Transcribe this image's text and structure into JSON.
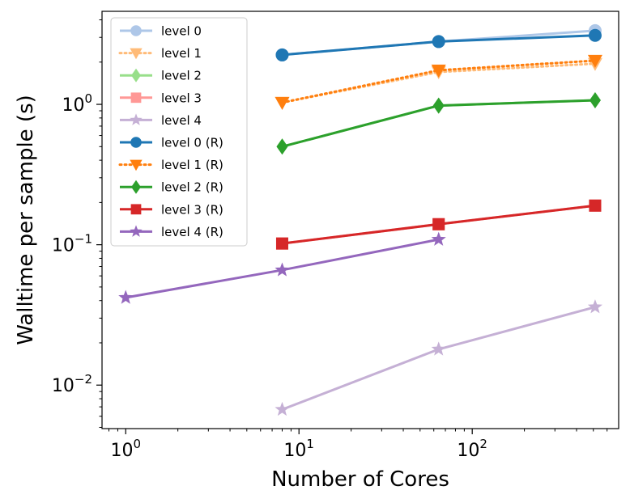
{
  "chart_data": {
    "type": "line",
    "title": "",
    "xlabel": "Number of Cores",
    "ylabel": "Walltime per sample (s)",
    "xscale": "log",
    "yscale": "log",
    "xlim": [
      0.73,
      700
    ],
    "ylim": [
      0.0049,
      4.6
    ],
    "xticks": [
      {
        "value": 1,
        "base": "10",
        "exp": "0"
      },
      {
        "value": 10,
        "base": "10",
        "exp": "1"
      },
      {
        "value": 100,
        "base": "10",
        "exp": "2"
      }
    ],
    "yticks": [
      {
        "value": 0.01,
        "base": "10",
        "exp": "−2"
      },
      {
        "value": 0.1,
        "base": "10",
        "exp": "−1"
      },
      {
        "value": 1,
        "base": "10",
        "exp": "0"
      }
    ],
    "legend_position": "upper-left",
    "series": [
      {
        "name": "level 0",
        "color": "#aec7e8",
        "marker": "circle",
        "dash": "solid",
        "x": [
          8,
          64,
          512
        ],
        "values": [
          2.25,
          2.8,
          3.35
        ]
      },
      {
        "name": "level 1",
        "color": "#ffbb78",
        "marker": "triangle-down",
        "dash": "dotted",
        "x": [
          8,
          64,
          512
        ],
        "values": [
          1.03,
          1.7,
          1.95
        ]
      },
      {
        "name": "level 2",
        "color": "#98df8a",
        "marker": "diamond",
        "dash": "solid",
        "x": [
          8,
          64,
          512
        ],
        "values": [
          0.5,
          0.98,
          1.07
        ]
      },
      {
        "name": "level 3",
        "color": "#ff9896",
        "marker": "square",
        "dash": "solid",
        "x": [
          8,
          64,
          512
        ],
        "values": [
          0.102,
          0.14,
          0.19
        ]
      },
      {
        "name": "level 4",
        "color": "#c5b0d5",
        "marker": "star",
        "dash": "solid",
        "x": [
          8,
          64,
          512
        ],
        "values": [
          0.0067,
          0.018,
          0.036
        ]
      },
      {
        "name": "level 0 (R)",
        "color": "#1f77b4",
        "marker": "circle",
        "dash": "solid",
        "x": [
          8,
          64,
          512
        ],
        "values": [
          2.25,
          2.8,
          3.1
        ]
      },
      {
        "name": "level 1 (R)",
        "color": "#ff7f0e",
        "marker": "triangle-down",
        "dash": "dotted",
        "x": [
          8,
          64,
          512
        ],
        "values": [
          1.03,
          1.75,
          2.05
        ]
      },
      {
        "name": "level 2 (R)",
        "color": "#2ca02c",
        "marker": "diamond",
        "dash": "solid",
        "x": [
          8,
          64,
          512
        ],
        "values": [
          0.5,
          0.98,
          1.07
        ]
      },
      {
        "name": "level 3 (R)",
        "color": "#d62728",
        "marker": "square",
        "dash": "solid",
        "x": [
          8,
          64,
          512
        ],
        "values": [
          0.102,
          0.14,
          0.19
        ]
      },
      {
        "name": "level 4 (R)",
        "color": "#9467bd",
        "marker": "star",
        "dash": "solid",
        "x": [
          1,
          8,
          64
        ],
        "values": [
          0.042,
          0.066,
          0.109
        ]
      }
    ]
  }
}
